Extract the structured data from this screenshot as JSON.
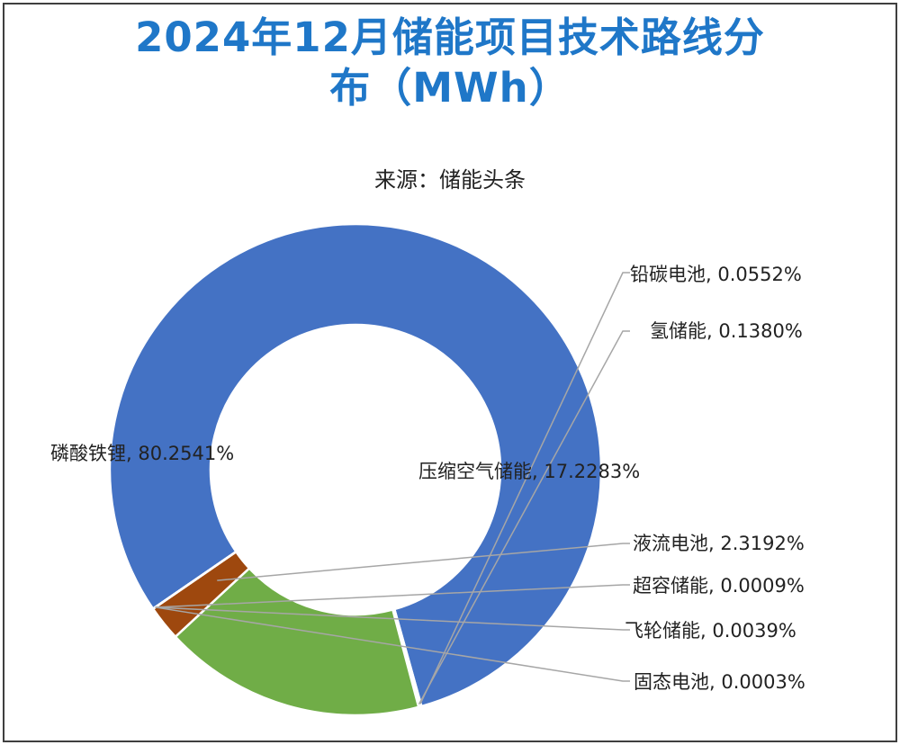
{
  "title_line1": "2024年12月储能项目技术路线分",
  "title_line2": "布（MWh）",
  "subtitle": "来源：储能头条",
  "chart_data": {
    "type": "pie",
    "style": "donut",
    "slices": [
      {
        "label": "磷酸铁锂",
        "value": 80.2541,
        "text": "磷酸铁锂, 80.2541%",
        "color": "#4472c4"
      },
      {
        "label": "铅碳电池",
        "value": 0.0552,
        "text": "铅碳电池, 0.0552%",
        "color": "#ffc000"
      },
      {
        "label": "氢储能",
        "value": 0.138,
        "text": "氢储能, 0.1380%",
        "color": "#a5a5a5"
      },
      {
        "label": "压缩空气储能",
        "value": 17.2283,
        "text": "压缩空气储能, 17.2283%",
        "color": "#70ad47"
      },
      {
        "label": "液流电池",
        "value": 2.3192,
        "text": "液流电池, 2.3192%",
        "color": "#9e480e"
      },
      {
        "label": "超容储能",
        "value": 0.0009,
        "text": "超容储能, 0.0009%",
        "color": "#636363"
      },
      {
        "label": "飞轮储能",
        "value": 0.0039,
        "text": "飞轮储能, 0.0039%",
        "color": "#264478"
      },
      {
        "label": "固态电池",
        "value": 0.0003,
        "text": "固态电池, 0.0003%",
        "color": "#7f6000"
      }
    ]
  }
}
